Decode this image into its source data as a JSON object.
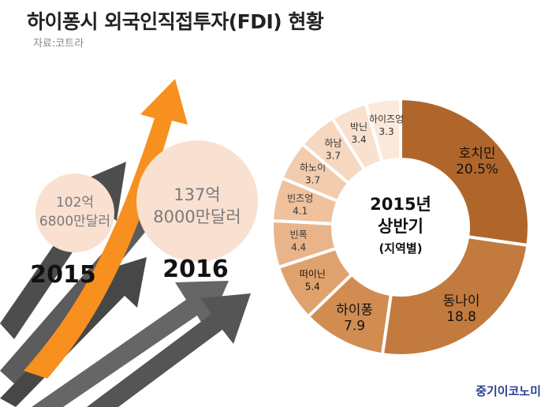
{
  "title": "하이퐁시 외국인직접투자(FDI) 현황",
  "source": "자료:코트라",
  "logo": "중기이코노미",
  "colors": {
    "arrow_orange": "#f7901e",
    "arrow_gray": "#595959",
    "circle_fill": "#f9e0d0",
    "year_text": "#111111",
    "amount_text": "#7a7a7a"
  },
  "years": [
    {
      "year": "2015",
      "amount_line1": "102억",
      "amount_line2": "6800만달러"
    },
    {
      "year": "2016",
      "amount_line1": "137억",
      "amount_line2": "8000만달러"
    }
  ],
  "chart_data": {
    "type": "pie",
    "subtype": "donut",
    "center_label_line1": "2015년",
    "center_label_line2": "상반기",
    "center_label_line3": "(지역별)",
    "categories": [
      "호치민",
      "동나이",
      "하이퐁",
      "떠이닌",
      "빈폭",
      "빈즈엉",
      "하노이",
      "하남",
      "박닌",
      "하이즈엉"
    ],
    "values": [
      20.5,
      18.8,
      7.9,
      5.4,
      4.4,
      4.1,
      3.7,
      3.7,
      3.4,
      3.3
    ],
    "value_labels": [
      "20.5%",
      "18.8",
      "7.9",
      "5.4",
      "4.4",
      "4.1",
      "3.7",
      "3.7",
      "3.4",
      "3.3"
    ],
    "colors": [
      "#b0662a",
      "#c37a3e",
      "#d18c52",
      "#e0a26d",
      "#e9b48a",
      "#efc19d",
      "#f3ccad",
      "#f6d7bf",
      "#f9e1cf",
      "#fbe9dc"
    ]
  }
}
